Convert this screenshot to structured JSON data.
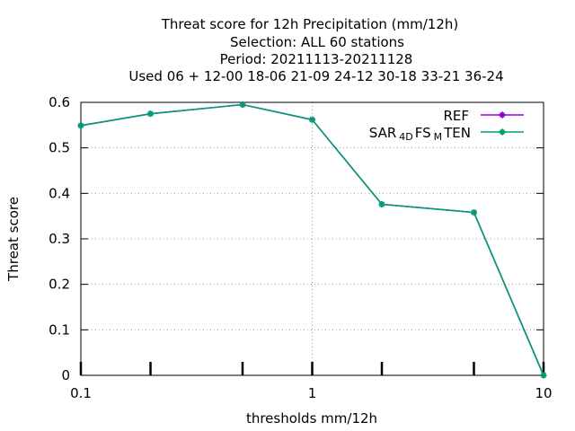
{
  "chart_data": {
    "type": "line",
    "title_lines": [
      "Threat score  for 12h Precipitation (mm/12h)",
      "Selection: ALL     60 stations",
      "Period: 20211113-20211128",
      "Used  06 + 12-00 18-06 21-09 24-12 30-18 33-21 36-24"
    ],
    "xlabel": "thresholds mm/12h",
    "ylabel": "Threat score",
    "xscale": "log",
    "xlim": [
      0.1,
      10
    ],
    "ylim": [
      0,
      0.6
    ],
    "x_ticks": [
      0.1,
      1,
      10
    ],
    "x_tick_labels": [
      "0.1",
      "1",
      "10"
    ],
    "y_ticks": [
      0,
      0.1,
      0.2,
      0.3,
      0.4,
      0.5,
      0.6
    ],
    "y_tick_labels": [
      "0",
      "0.1",
      "0.2",
      "0.3",
      "0.4",
      "0.5",
      "0.6"
    ],
    "x_data_ticks": [
      0.1,
      0.2,
      0.5,
      1,
      2,
      5,
      10
    ],
    "grid": true,
    "legend_position": "top-right",
    "series": [
      {
        "name": "REF",
        "color": "#9400d3",
        "x": [
          0.1,
          0.2,
          0.5,
          1,
          2,
          5,
          10
        ],
        "values": [
          0.549,
          0.575,
          0.595,
          0.562,
          0.376,
          0.358,
          0.0
        ]
      },
      {
        "name_parts": [
          "SAR",
          "4D",
          "FS",
          "M",
          "TEN"
        ],
        "color": "#009e73",
        "x": [
          0.1,
          0.2,
          0.5,
          1,
          2,
          5,
          10
        ],
        "values": [
          0.549,
          0.575,
          0.595,
          0.562,
          0.376,
          0.358,
          0.0
        ]
      }
    ]
  }
}
